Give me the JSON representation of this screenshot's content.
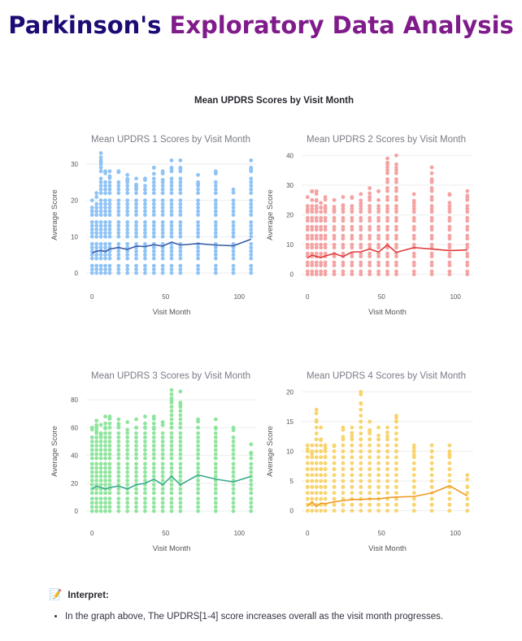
{
  "page": {
    "title_part1": "Parkinson's",
    "title_part2": "Exploratory Data Analysis",
    "figure_title": "Mean UPDRS Scores by Visit Month",
    "interpret_icon": "memo-icon",
    "interpret_label": "Interpret:",
    "bullets": [
      "In the graph above, The UPDRS[1-4] score increases overall as the visit month progresses."
    ]
  },
  "colors": {
    "title_navy": "#1d0a74",
    "title_purple": "#7f1b8a"
  },
  "chart_data": [
    {
      "type": "scatter",
      "title": "Mean UPDRS 1 Scores by Visit Month",
      "xlabel": "Visit Month",
      "ylabel": "Average Score",
      "xlim": [
        -4,
        112
      ],
      "ylim": [
        -2,
        34
      ],
      "xticks": [
        0,
        50,
        100
      ],
      "yticks": [
        0,
        10,
        20,
        30
      ],
      "grid": true,
      "point_color": "#8fc3f5",
      "line_color": "#3b5fa8",
      "visit_months": [
        0,
        3,
        6,
        9,
        12,
        18,
        24,
        30,
        36,
        42,
        48,
        54,
        60,
        72,
        84,
        96,
        108
      ],
      "scatter_max": [
        20,
        22,
        33,
        28,
        28,
        28,
        27,
        26,
        26,
        29,
        28,
        31,
        31,
        27,
        28,
        23,
        31
      ],
      "mean_line": {
        "x": [
          0,
          3,
          6,
          9,
          12,
          18,
          24,
          30,
          36,
          42,
          48,
          54,
          60,
          72,
          84,
          96,
          108
        ],
        "y": [
          5.5,
          6.0,
          6.2,
          5.9,
          6.6,
          7.0,
          6.5,
          7.4,
          7.3,
          7.8,
          7.4,
          8.5,
          7.7,
          8.1,
          7.7,
          7.5,
          9.3
        ]
      }
    },
    {
      "type": "scatter",
      "title": "Mean UPDRS 2 Scores by Visit Month",
      "xlabel": "Visit Month",
      "ylabel": "Average Score",
      "xlim": [
        -4,
        112
      ],
      "ylim": [
        -2,
        42
      ],
      "xticks": [
        0,
        50,
        100
      ],
      "yticks": [
        0,
        10,
        20,
        30,
        40
      ],
      "grid": true,
      "point_color": "#f4a3a3",
      "line_color": "#e03b3b",
      "visit_months": [
        0,
        3,
        6,
        9,
        12,
        18,
        24,
        30,
        36,
        42,
        48,
        54,
        60,
        72,
        84,
        96,
        108
      ],
      "scatter_max": [
        26,
        28,
        28,
        24,
        26,
        25,
        26,
        26,
        27,
        29,
        28,
        39,
        40,
        27,
        36,
        27,
        28
      ],
      "mean_line": {
        "x": [
          0,
          3,
          6,
          9,
          12,
          18,
          24,
          30,
          36,
          42,
          48,
          54,
          60,
          72,
          84,
          96,
          108
        ],
        "y": [
          5.5,
          6.5,
          6.0,
          5.6,
          6.2,
          7.0,
          6.0,
          7.5,
          7.6,
          8.5,
          7.5,
          9.9,
          7.4,
          9.0,
          8.5,
          8.0,
          8.2
        ]
      }
    },
    {
      "type": "scatter",
      "title": "Mean UPDRS 3 Scores by Visit Month",
      "xlabel": "Visit Month",
      "ylabel": "Average Score",
      "xlim": [
        -4,
        112
      ],
      "ylim": [
        -4,
        90
      ],
      "xticks": [
        0,
        50,
        100
      ],
      "yticks": [
        0,
        20,
        40,
        60,
        80
      ],
      "grid": true,
      "point_color": "#8ee59c",
      "line_color": "#3aaa8f",
      "visit_months": [
        0,
        3,
        6,
        9,
        12,
        18,
        24,
        30,
        36,
        42,
        48,
        54,
        60,
        72,
        84,
        96,
        108
      ],
      "scatter_max": [
        60,
        65,
        62,
        68,
        68,
        66,
        64,
        66,
        68,
        68,
        64,
        87,
        86,
        66,
        66,
        60,
        48
      ],
      "mean_line": {
        "x": [
          0,
          3,
          6,
          9,
          12,
          18,
          24,
          30,
          36,
          42,
          48,
          54,
          60,
          72,
          84,
          96,
          108
        ],
        "y": [
          16,
          18,
          17,
          16,
          17,
          18,
          16,
          19,
          20,
          23,
          19,
          25,
          19,
          26,
          23,
          21,
          25
        ]
      }
    },
    {
      "type": "scatter",
      "title": "Mean UPDRS 4 Scores by Visit Month",
      "xlabel": "Visit Month",
      "ylabel": "Average Score",
      "xlim": [
        -4,
        112
      ],
      "ylim": [
        -1,
        21
      ],
      "xticks": [
        0,
        50,
        100
      ],
      "yticks": [
        0,
        5,
        10,
        15,
        20
      ],
      "grid": true,
      "point_color": "#f8d46e",
      "line_color": "#ef9a24",
      "visit_months": [
        0,
        3,
        6,
        9,
        12,
        18,
        24,
        30,
        36,
        42,
        48,
        54,
        60,
        72,
        84,
        96,
        108
      ],
      "scatter_max": [
        11,
        11,
        17,
        14,
        11,
        11,
        14,
        14,
        20,
        15,
        14,
        14,
        16,
        11,
        11,
        11,
        6
      ],
      "mean_line": {
        "x": [
          0,
          3,
          6,
          9,
          12,
          18,
          24,
          30,
          36,
          42,
          48,
          54,
          60,
          72,
          84,
          96,
          108
        ],
        "y": [
          0.8,
          1.5,
          0.7,
          1.3,
          1.2,
          1.5,
          1.7,
          1.9,
          1.9,
          2.0,
          2.0,
          2.2,
          2.3,
          2.4,
          3.0,
          4.2,
          2.5
        ]
      }
    }
  ]
}
